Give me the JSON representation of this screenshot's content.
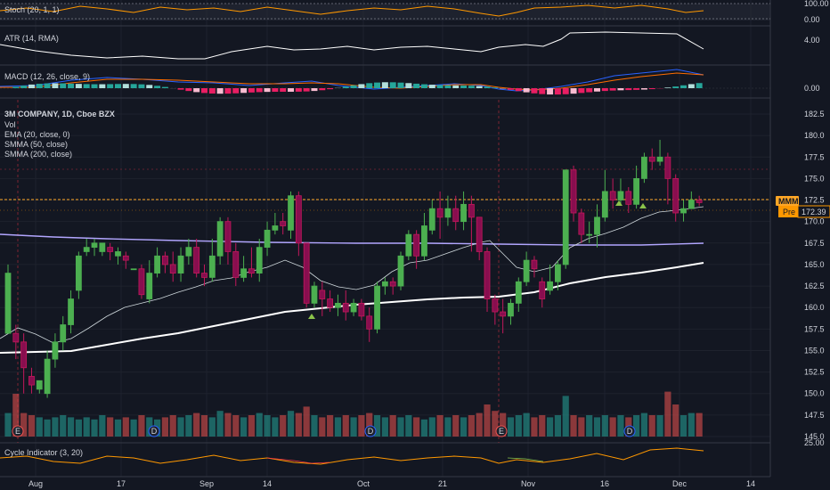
{
  "chart_data": {
    "type": "candlestick",
    "symbol": "3M COMPANY, 1D, Cboe BZX",
    "indicator_labels": {
      "stoch": "Stoch (20, 1, 1)",
      "atr": "ATR (14, RMA)",
      "macd": "MACD (12, 26, close, 9)",
      "vol": "Vol",
      "ema": "EMA (20, close, 0)",
      "smma50": "SMMA (50, close)",
      "smma200": "SMMA (200, close)",
      "cycle": "Cycle Indicator (3, 20)"
    },
    "price_ticks": [
      "182.5",
      "180.0",
      "177.5",
      "175.0",
      "172.5",
      "170.0",
      "167.5",
      "165.0",
      "162.5",
      "160.0",
      "157.5",
      "155.0",
      "152.5",
      "150.0",
      "147.5",
      "145.0"
    ],
    "stoch_ticks": [
      "100.00",
      "0.00"
    ],
    "atr_ticks": [
      "4.00"
    ],
    "macd_ticks": [
      "0.00"
    ],
    "cycle_ticks": [
      "25.00"
    ],
    "x_ticks": [
      "Aug",
      "17",
      "Sep",
      "14",
      "Oct",
      "21",
      "Nov",
      "16",
      "Dec",
      "14"
    ],
    "markers": [
      "E",
      "D",
      "D",
      "E",
      "D",
      "E"
    ],
    "price_tag": {
      "symbol": "MMM",
      "pre_label": "Pre",
      "pre_value": "172.39"
    },
    "candles": [
      [
        157,
        164,
        165,
        157.5
      ],
      [
        157,
        156,
        158,
        154
      ],
      [
        156,
        153,
        157,
        150
      ],
      [
        152,
        151,
        153,
        150
      ],
      [
        150.5,
        151.5,
        151.5,
        150
      ],
      [
        150,
        154,
        155,
        149.5
      ],
      [
        154,
        156,
        157,
        153
      ],
      [
        156,
        158,
        159,
        155
      ],
      [
        158,
        161,
        162,
        157
      ],
      [
        162,
        166,
        166.5,
        161
      ],
      [
        166.5,
        167,
        168,
        166
      ],
      [
        167,
        167.5,
        168,
        166
      ],
      [
        166.5,
        167.5,
        167.5,
        166
      ],
      [
        167,
        166.5,
        167.5,
        165.5
      ],
      [
        166,
        166.5,
        167,
        165
      ],
      [
        166,
        165.5,
        166.5,
        164.5
      ],
      [
        164.5,
        164.5,
        164.5,
        164.5
      ],
      [
        164.5,
        161.5,
        165,
        161
      ],
      [
        161,
        164,
        165.5,
        160.5
      ],
      [
        164,
        166,
        167,
        163.5
      ],
      [
        166,
        165,
        166.5,
        164
      ],
      [
        165,
        164,
        166.5,
        163
      ],
      [
        164,
        166,
        167,
        163
      ],
      [
        166,
        167,
        168,
        165
      ],
      [
        167,
        164,
        168,
        163.5
      ],
      [
        164,
        163.5,
        165,
        162.5
      ],
      [
        163.5,
        166,
        168,
        163
      ],
      [
        166,
        170,
        170.5,
        165
      ],
      [
        170,
        166.5,
        170.5,
        165
      ],
      [
        166.5,
        163.5,
        167.5,
        162.5
      ],
      [
        163.5,
        164.5,
        166,
        163
      ],
      [
        164.5,
        164,
        167,
        163.5
      ],
      [
        164,
        167,
        168,
        163
      ],
      [
        167,
        169,
        170,
        166
      ],
      [
        169,
        169.5,
        171,
        168.5
      ],
      [
        170,
        169.5,
        171,
        168.5
      ],
      [
        169,
        173,
        173.5,
        168
      ],
      [
        173,
        167.5,
        173.5,
        166
      ],
      [
        167.5,
        160.5,
        167.5,
        160
      ],
      [
        160.5,
        162.5,
        163,
        160
      ],
      [
        162,
        161,
        163,
        159
      ],
      [
        161,
        160,
        162,
        159.5
      ],
      [
        160,
        160.5,
        161.5,
        159
      ],
      [
        160.5,
        159.5,
        162,
        158.5
      ],
      [
        159.5,
        160.5,
        161,
        159
      ],
      [
        160.5,
        159,
        161,
        158.5
      ],
      [
        159,
        157.5,
        160,
        156
      ],
      [
        157.5,
        162.5,
        163,
        157
      ],
      [
        162.5,
        163,
        163.5,
        161.5
      ],
      [
        163,
        162.5,
        163.5,
        161.5
      ],
      [
        162.5,
        166,
        166.5,
        162
      ],
      [
        166,
        168.5,
        169,
        165.5
      ],
      [
        168.5,
        166,
        169,
        164.5
      ],
      [
        166,
        169.5,
        171,
        165.5
      ],
      [
        169,
        171.5,
        172.5,
        168.5
      ],
      [
        171.5,
        170.5,
        173.5,
        168
      ],
      [
        170.5,
        171.5,
        173,
        169.5
      ],
      [
        171.5,
        170,
        173,
        169
      ],
      [
        170,
        172,
        173.5,
        169
      ],
      [
        172,
        170.5,
        173,
        166.5
      ],
      [
        170.5,
        166.5,
        170.5,
        165.5
      ],
      [
        166.5,
        161,
        167,
        159.5
      ],
      [
        161,
        159.5,
        161.5,
        158
      ],
      [
        159.5,
        159,
        161,
        157
      ],
      [
        159,
        160.5,
        161,
        158
      ],
      [
        160.5,
        163,
        163.5,
        159.5
      ],
      [
        163,
        165.5,
        166.5,
        162.5
      ],
      [
        165.5,
        164.5,
        166,
        163.5
      ],
      [
        163,
        161,
        163.5,
        160
      ],
      [
        162,
        163,
        165,
        161.5
      ],
      [
        163,
        165,
        165.5,
        162
      ],
      [
        165,
        176,
        176,
        164.5
      ],
      [
        176,
        171,
        176.5,
        170
      ],
      [
        171,
        168.5,
        171.5,
        167.5
      ],
      [
        168.5,
        168.5,
        170,
        167.5
      ],
      [
        168.5,
        170.5,
        172,
        167
      ],
      [
        170.5,
        173.5,
        176,
        170
      ],
      [
        173.5,
        172.5,
        175,
        171.5
      ],
      [
        172.5,
        173.5,
        175,
        172
      ],
      [
        173.5,
        172,
        174,
        171
      ],
      [
        172,
        175,
        176.5,
        171.5
      ],
      [
        175,
        177.5,
        178,
        174.5
      ],
      [
        177.5,
        177,
        178.5,
        176
      ],
      [
        177,
        177.5,
        179.5,
        176.5
      ],
      [
        177.5,
        175,
        178,
        172
      ],
      [
        175,
        171,
        175.5,
        170
      ],
      [
        171,
        171.5,
        172.5,
        170
      ],
      [
        171.5,
        172.5,
        173.5,
        171.5
      ],
      [
        172.5,
        172.2,
        173,
        171.8
      ]
    ],
    "volumes": [
      0.55,
      1.0,
      0.55,
      0.5,
      0.45,
      0.4,
      0.45,
      0.5,
      0.45,
      0.4,
      0.45,
      0.4,
      0.5,
      0.45,
      0.4,
      0.45,
      0.4,
      0.5,
      0.45,
      0.4,
      0.45,
      0.5,
      0.45,
      0.5,
      0.55,
      0.5,
      0.45,
      0.6,
      0.55,
      0.5,
      0.45,
      0.5,
      0.55,
      0.5,
      0.45,
      0.5,
      0.6,
      0.55,
      0.7,
      0.5,
      0.45,
      0.5,
      0.45,
      0.5,
      0.45,
      0.5,
      0.55,
      0.5,
      0.45,
      0.5,
      0.45,
      0.5,
      0.45,
      0.4,
      0.45,
      0.5,
      0.45,
      0.5,
      0.45,
      0.5,
      0.55,
      0.75,
      0.6,
      0.55,
      0.45,
      0.5,
      0.55,
      0.45,
      0.5,
      0.45,
      0.5,
      0.95,
      0.5,
      0.45,
      0.5,
      0.45,
      0.5,
      0.45,
      0.5,
      0.45,
      0.5,
      0.55,
      0.5,
      0.5,
      1.05,
      0.75,
      0.5,
      0.55,
      0.55
    ],
    "price_ylim": [
      144,
      184
    ],
    "x_label_positions_days": [
      0,
      12,
      26,
      38,
      52,
      66,
      80,
      92,
      106,
      118
    ]
  }
}
